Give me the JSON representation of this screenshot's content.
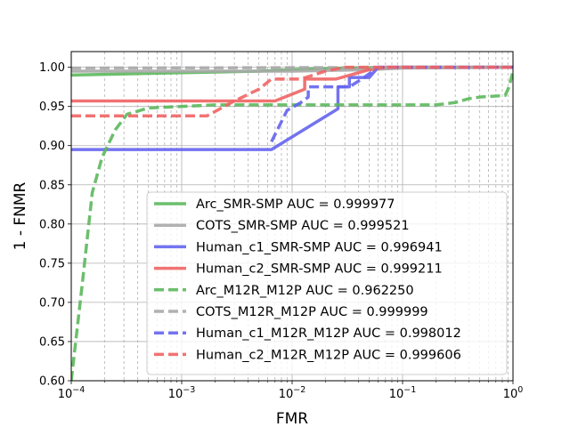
{
  "chart_data": {
    "type": "line",
    "title": "",
    "xlabel": "FMR",
    "ylabel": "1 - FNMR",
    "xscale": "log",
    "xlim": [
      0.0001,
      1
    ],
    "ylim": [
      0.6,
      1.02
    ],
    "grid": true,
    "legend_position": "lower-right",
    "x_ticks": [
      {
        "value": 0.0001,
        "base": "10",
        "exp": "−4"
      },
      {
        "value": 0.001,
        "base": "10",
        "exp": "−3"
      },
      {
        "value": 0.01,
        "base": "10",
        "exp": "−2"
      },
      {
        "value": 0.1,
        "base": "10",
        "exp": "−1"
      },
      {
        "value": 1,
        "base": "10",
        "exp": "0"
      }
    ],
    "y_ticks": [
      {
        "value": 0.6,
        "label": "0.60"
      },
      {
        "value": 0.65,
        "label": "0.65"
      },
      {
        "value": 0.7,
        "label": "0.70"
      },
      {
        "value": 0.75,
        "label": "0.75"
      },
      {
        "value": 0.8,
        "label": "0.80"
      },
      {
        "value": 0.85,
        "label": "0.85"
      },
      {
        "value": 0.9,
        "label": "0.90"
      },
      {
        "value": 0.95,
        "label": "0.95"
      },
      {
        "value": 1.0,
        "label": "1.00"
      }
    ],
    "series": [
      {
        "name": "Arc_SMR-SMP AUC = 0.999977",
        "color": "#5cb85c",
        "style": "solid",
        "points": [
          [
            0.0001,
            0.99
          ],
          [
            0.001,
            0.993
          ],
          [
            0.005,
            0.995
          ],
          [
            0.01,
            0.997
          ],
          [
            0.03,
            0.999
          ],
          [
            0.1,
            1.0
          ],
          [
            1,
            1.0
          ]
        ]
      },
      {
        "name": "COTS_SMR-SMP AUC = 0.999521",
        "color": "#a9a9a9",
        "style": "solid",
        "points": [
          [
            0.0001,
            0.995
          ],
          [
            0.01,
            0.995
          ],
          [
            0.05,
            0.997
          ],
          [
            0.1,
            0.999
          ],
          [
            1,
            1.0
          ]
        ]
      },
      {
        "name": "Human_c1_SMR-SMP AUC = 0.996941",
        "color": "#6464ee",
        "style": "solid",
        "points": [
          [
            0.0001,
            0.895
          ],
          [
            0.0065,
            0.895
          ],
          [
            0.026,
            0.947
          ],
          [
            0.026,
            0.975
          ],
          [
            0.033,
            0.975
          ],
          [
            0.033,
            0.987
          ],
          [
            0.05,
            0.987
          ],
          [
            0.06,
            1.0
          ],
          [
            1,
            1.0
          ]
        ]
      },
      {
        "name": "Human_c2_SMR-SMP AUC = 0.999211",
        "color": "#f06464",
        "style": "solid",
        "points": [
          [
            0.0001,
            0.957
          ],
          [
            0.007,
            0.957
          ],
          [
            0.013,
            0.972
          ],
          [
            0.013,
            0.985
          ],
          [
            0.025,
            0.985
          ],
          [
            0.05,
            0.997
          ],
          [
            0.07,
            1.0
          ],
          [
            1,
            1.0
          ]
        ]
      },
      {
        "name": "Arc_M12R_M12P AUC = 0.962250",
        "color": "#5cb85c",
        "style": "dashed",
        "points": [
          [
            0.0001,
            0.6
          ],
          [
            0.000125,
            0.72
          ],
          [
            0.000155,
            0.84
          ],
          [
            0.00019,
            0.885
          ],
          [
            0.00025,
            0.92
          ],
          [
            0.00032,
            0.94
          ],
          [
            0.0005,
            0.948
          ],
          [
            0.001,
            0.95
          ],
          [
            0.002,
            0.952
          ],
          [
            0.2,
            0.952
          ],
          [
            0.3,
            0.955
          ],
          [
            0.4,
            0.96
          ],
          [
            0.5,
            0.962
          ],
          [
            0.85,
            0.964
          ],
          [
            0.92,
            0.975
          ],
          [
            1,
            0.995
          ]
        ]
      },
      {
        "name": "COTS_M12R_M12P AUC = 0.999999",
        "color": "#a9a9a9",
        "style": "dashed",
        "points": [
          [
            0.0001,
            0.999
          ],
          [
            1,
            1.0
          ]
        ]
      },
      {
        "name": "Human_c1_M12R_M12P AUC = 0.998012",
        "color": "#6464ee",
        "style": "dashed",
        "points": [
          [
            0.0065,
            0.905
          ],
          [
            0.009,
            0.945
          ],
          [
            0.012,
            0.955
          ],
          [
            0.014,
            0.962
          ],
          [
            0.014,
            0.975
          ],
          [
            0.033,
            0.975
          ],
          [
            0.045,
            0.987
          ],
          [
            0.06,
            1.0
          ],
          [
            1,
            1.0
          ]
        ]
      },
      {
        "name": "Human_c2_M12R_M12P AUC = 0.999606",
        "color": "#f06464",
        "style": "dashed",
        "points": [
          [
            0.0001,
            0.938
          ],
          [
            0.0017,
            0.938
          ],
          [
            0.003,
            0.957
          ],
          [
            0.005,
            0.972
          ],
          [
            0.0065,
            0.985
          ],
          [
            0.012,
            0.985
          ],
          [
            0.02,
            0.995
          ],
          [
            0.03,
            1.0
          ],
          [
            1,
            1.0
          ]
        ]
      }
    ]
  }
}
